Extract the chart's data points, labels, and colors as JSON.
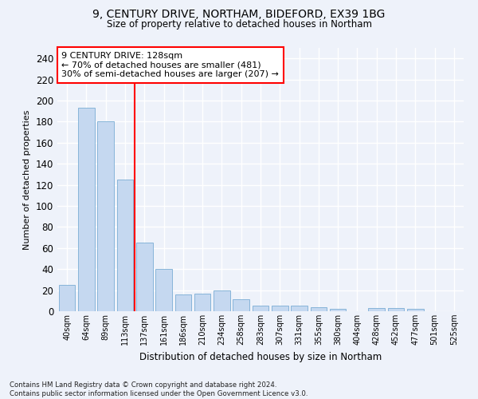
{
  "title1": "9, CENTURY DRIVE, NORTHAM, BIDEFORD, EX39 1BG",
  "title2": "Size of property relative to detached houses in Northam",
  "xlabel": "Distribution of detached houses by size in Northam",
  "ylabel": "Number of detached properties",
  "categories": [
    "40sqm",
    "64sqm",
    "89sqm",
    "113sqm",
    "137sqm",
    "161sqm",
    "186sqm",
    "210sqm",
    "234sqm",
    "258sqm",
    "283sqm",
    "307sqm",
    "331sqm",
    "355sqm",
    "380sqm",
    "404sqm",
    "428sqm",
    "452sqm",
    "477sqm",
    "501sqm",
    "525sqm"
  ],
  "values": [
    25,
    193,
    180,
    125,
    65,
    40,
    16,
    17,
    20,
    11,
    5,
    5,
    5,
    4,
    2,
    0,
    3,
    3,
    2,
    0,
    0
  ],
  "bar_color": "#c5d8f0",
  "bar_edge_color": "#7aadd4",
  "vline_color": "red",
  "annotation_text": "9 CENTURY DRIVE: 128sqm\n← 70% of detached houses are smaller (481)\n30% of semi-detached houses are larger (207) →",
  "annotation_box_color": "white",
  "annotation_box_edge": "red",
  "ylim": [
    0,
    250
  ],
  "yticks": [
    0,
    20,
    40,
    60,
    80,
    100,
    120,
    140,
    160,
    180,
    200,
    220,
    240
  ],
  "footer": "Contains HM Land Registry data © Crown copyright and database right 2024.\nContains public sector information licensed under the Open Government Licence v3.0.",
  "bg_color": "#eef2fa",
  "grid_color": "white"
}
